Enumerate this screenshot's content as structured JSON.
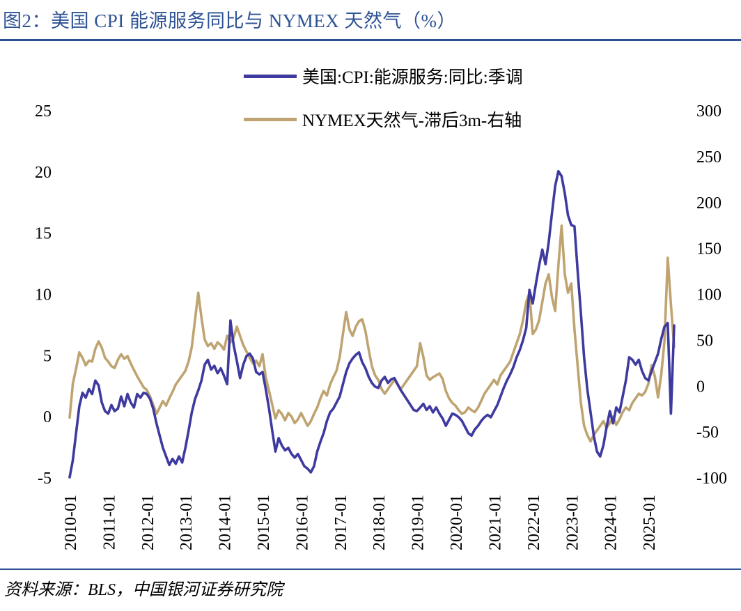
{
  "title": "图2：美国 CPI 能源服务同比与 NYMEX 天然气（%）",
  "source": "资料来源：BLS，中国银河证券研究院",
  "colors": {
    "primary": "#3E3A9F",
    "secondary": "#BFA471",
    "heading": "#2E5395",
    "rule": "#2E5395",
    "negative_tick": "#FF0000",
    "text": "#000000"
  },
  "chart_data": {
    "type": "line",
    "title": "美国 CPI 能源服务同比与 NYMEX 天然气（%）",
    "x_start": "2010-01",
    "x_end": "2025-09",
    "x_ticks": [
      "2010-01",
      "2011-01",
      "2012-01",
      "2013-01",
      "2014-01",
      "2015-01",
      "2016-01",
      "2017-01",
      "2018-01",
      "2019-01",
      "2020-01",
      "2021-01",
      "2022-01",
      "2023-01",
      "2024-01",
      "2025-01"
    ],
    "left_axis": {
      "min": -5,
      "max": 25,
      "ticks": [
        25,
        20,
        15,
        10,
        5,
        0,
        -5
      ]
    },
    "right_axis": {
      "min": -100,
      "max": 300,
      "ticks": [
        300,
        250,
        200,
        150,
        100,
        50,
        0,
        -50,
        -100
      ]
    },
    "grid": false,
    "legend_position": "top-center",
    "series": [
      {
        "name": "美国:CPI:能源服务:同比:季调",
        "axis": "left",
        "color": "#3E3A9F",
        "values": [
          -5.0,
          -3.6,
          -1.4,
          0.8,
          1.9,
          1.5,
          2.2,
          1.8,
          2.9,
          2.5,
          1.1,
          0.4,
          0.2,
          0.9,
          0.4,
          0.6,
          1.6,
          0.8,
          1.8,
          1.1,
          0.7,
          1.8,
          1.5,
          1.9,
          1.8,
          1.4,
          0.6,
          -0.6,
          -1.6,
          -2.6,
          -3.3,
          -4.0,
          -3.5,
          -3.9,
          -3.3,
          -3.8,
          -2.6,
          -1.2,
          0.3,
          1.4,
          2.1,
          2.9,
          4.2,
          4.6,
          3.8,
          4.1,
          3.5,
          3.9,
          3.3,
          2.6,
          7.8,
          5.8,
          4.5,
          3.1,
          4.2,
          4.9,
          5.1,
          4.7,
          3.6,
          3.4,
          3.6,
          2.2,
          0.6,
          -1.2,
          -2.9,
          -1.8,
          -2.4,
          -2.8,
          -2.6,
          -3.1,
          -3.4,
          -3.1,
          -3.6,
          -4.1,
          -4.3,
          -4.6,
          -4.1,
          -2.9,
          -2.1,
          -1.4,
          -0.4,
          0.3,
          0.6,
          1.1,
          1.6,
          2.6,
          3.6,
          4.3,
          4.7,
          5.0,
          5.2,
          4.4,
          3.9,
          3.2,
          2.7,
          2.4,
          2.3,
          2.9,
          3.2,
          2.7,
          3.0,
          3.1,
          2.6,
          2.1,
          1.7,
          1.3,
          0.9,
          0.5,
          0.4,
          0.7,
          1.0,
          0.5,
          0.8,
          0.3,
          0.7,
          0.2,
          -0.2,
          -0.8,
          -0.3,
          0.2,
          0.1,
          -0.1,
          -0.4,
          -0.9,
          -1.4,
          -1.6,
          -1.1,
          -0.8,
          -0.4,
          -0.1,
          0.1,
          -0.1,
          0.4,
          0.9,
          1.6,
          2.3,
          2.9,
          3.4,
          4.0,
          4.8,
          5.4,
          6.2,
          7.2,
          10.3,
          9.2,
          10.8,
          12.3,
          13.6,
          12.4,
          14.2,
          16.6,
          18.8,
          20.0,
          19.6,
          18.2,
          16.4,
          15.6,
          15.5,
          11.8,
          8.4,
          4.8,
          2.2,
          0.3,
          -1.6,
          -2.9,
          -3.3,
          -2.4,
          -0.9,
          0.4,
          -0.6,
          0.7,
          0.3,
          1.6,
          2.9,
          4.8,
          4.6,
          4.2,
          4.6,
          3.7,
          3.1,
          2.9,
          3.7,
          4.4,
          5.1,
          6.3,
          7.3,
          7.6,
          0.2,
          7.4
        ]
      },
      {
        "name": "NYMEX天然气-滞后3m-右轴",
        "axis": "right",
        "color": "#BFA471",
        "values": [
          -35,
          2,
          18,
          36,
          30,
          22,
          27,
          26,
          40,
          48,
          41,
          30,
          26,
          21,
          19,
          28,
          34,
          29,
          32,
          24,
          17,
          10,
          4,
          -2,
          -5,
          -12,
          -21,
          -31,
          -24,
          -17,
          -22,
          -14,
          -7,
          1,
          6,
          11,
          16,
          26,
          42,
          72,
          101,
          74,
          50,
          43,
          46,
          40,
          47,
          44,
          39,
          54,
          47,
          52,
          64,
          54,
          44,
          37,
          30,
          24,
          27,
          21,
          34,
          9,
          -6,
          -21,
          -36,
          -27,
          -31,
          -38,
          -30,
          -34,
          -41,
          -37,
          -30,
          -37,
          -44,
          -39,
          -31,
          -24,
          -14,
          -6,
          -11,
          1,
          9,
          16,
          31,
          56,
          80,
          61,
          54,
          64,
          70,
          72,
          59,
          39,
          21,
          11,
          6,
          -4,
          -9,
          -4,
          1,
          6,
          1,
          -4,
          1,
          6,
          11,
          16,
          21,
          46,
          31,
          11,
          6,
          9,
          11,
          13,
          7,
          -6,
          -14,
          -19,
          -22,
          -27,
          -31,
          -29,
          -24,
          -27,
          -29,
          -24,
          -17,
          -9,
          -4,
          1,
          6,
          1,
          11,
          16,
          21,
          26,
          36,
          46,
          56,
          71,
          91,
          101,
          56,
          61,
          71,
          91,
          111,
          121,
          96,
          81,
          131,
          174,
          121,
          101,
          111,
          61,
          21,
          -19,
          -44,
          -54,
          -61,
          -54,
          -49,
          -44,
          -39,
          -46,
          -41,
          -34,
          -43,
          -37,
          -29,
          -24,
          -27,
          -19,
          -14,
          -9,
          -11,
          -7,
          2,
          22,
          10,
          -13,
          12,
          48,
          139,
          88,
          42
        ]
      }
    ]
  }
}
